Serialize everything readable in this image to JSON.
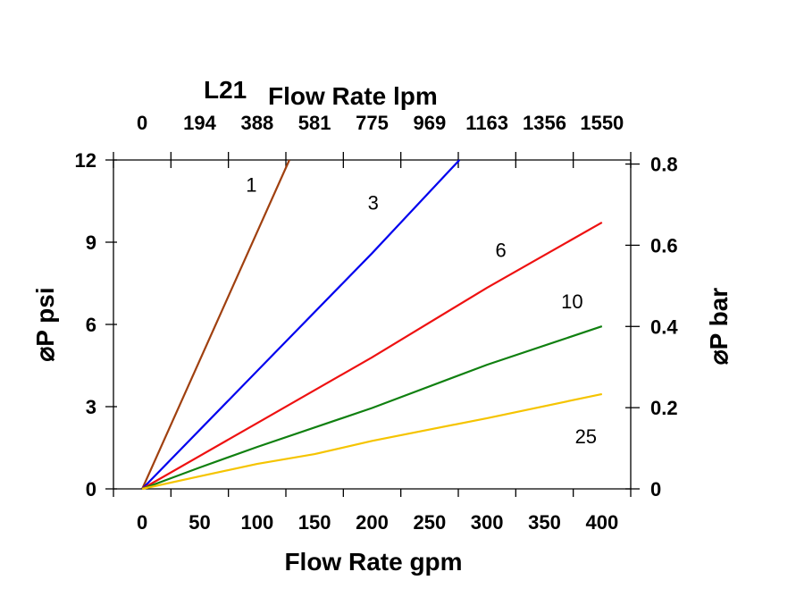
{
  "chart_data": {
    "type": "line",
    "title": "L21",
    "xlabel": "Flow Rate gpm",
    "x2label": "Flow Rate lpm",
    "ylabel": "⌀P psi",
    "y2label": "⌀P bar",
    "xlim": [
      -25,
      425
    ],
    "ylim": [
      0,
      12
    ],
    "y2lim": [
      0,
      0.81
    ],
    "xticks": [
      0,
      50,
      100,
      150,
      200,
      250,
      300,
      350,
      400
    ],
    "xtick_labels": [
      "0",
      "50",
      "100",
      "150",
      "200",
      "250",
      "300",
      "350",
      "400"
    ],
    "x2tick_labels": [
      "0",
      "194",
      "388",
      "581",
      "775",
      "969",
      "1163",
      "1356",
      "1550"
    ],
    "yticks": [
      0,
      3,
      6,
      9,
      12
    ],
    "ytick_labels": [
      "0",
      "3",
      "6",
      "9",
      "12"
    ],
    "y2ticks": [
      0,
      0.2,
      0.4,
      0.6,
      0.8
    ],
    "y2tick_labels": [
      "0",
      "0.2",
      "0.4",
      "0.6",
      "0.8"
    ],
    "grid": false,
    "series": [
      {
        "name": "1",
        "color": "#a0400f",
        "x": [
          0,
          128
        ],
        "y": [
          0,
          12
        ],
        "label_at": [
          95,
          11.1
        ]
      },
      {
        "name": "3",
        "color": "#0000ee",
        "x": [
          0,
          100,
          200,
          276
        ],
        "y": [
          0,
          4.3,
          8.6,
          12
        ],
        "label_at": [
          201,
          10.45
        ]
      },
      {
        "name": "6",
        "color": "#ee1111",
        "x": [
          0,
          100,
          200,
          300,
          400
        ],
        "y": [
          0,
          2.4,
          4.8,
          7.34,
          9.72
        ],
        "label_at": [
          312,
          8.73
        ]
      },
      {
        "name": "10",
        "color": "#108010",
        "x": [
          0,
          50,
          100,
          200,
          300,
          400
        ],
        "y": [
          0,
          0.78,
          1.53,
          2.95,
          4.53,
          5.93
        ],
        "label_at": [
          374,
          6.85
        ]
      },
      {
        "name": "25",
        "color": "#f5c400",
        "x": [
          0,
          50,
          100,
          150,
          200,
          300,
          400
        ],
        "y": [
          0,
          0.46,
          0.91,
          1.27,
          1.75,
          2.58,
          3.46
        ],
        "label_at": [
          386,
          1.92
        ]
      }
    ]
  }
}
